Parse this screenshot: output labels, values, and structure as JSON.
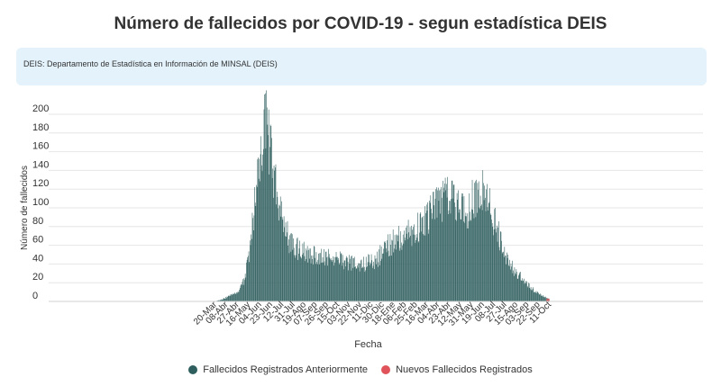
{
  "title": "Número de fallecidos por COVID-19 - segun estadística DEIS",
  "note": "DEIS: Departamento de Estadística en Información de MINSAL (DEIS)",
  "colors": {
    "previous": "#2f5e5e",
    "new": "#e0535a"
  },
  "chart_data": {
    "type": "bar",
    "xlabel": "Fecha",
    "ylabel": "Número de fallecidos",
    "ylim": [
      0,
      200
    ],
    "yticks": [
      0,
      20,
      40,
      60,
      80,
      100,
      120,
      140,
      160,
      180,
      200
    ],
    "grid": true,
    "legend_position": "bottom",
    "x_start": "2020-03-20",
    "x_end": "2021-10-11",
    "x_ticks": [
      "20-Mar",
      "08-Abr",
      "27-Abr",
      "16-May",
      "04-Jun",
      "23-Jun",
      "12-Jul",
      "31-Jul",
      "19-Ago",
      "07-Sep",
      "26-Sep",
      "15-Oct",
      "03-Nov",
      "22-Nov",
      "11-Dic",
      "30-Dic",
      "18-Ene",
      "06-Feb",
      "25-Feb",
      "16-Mar",
      "04-Abr",
      "23-Abr",
      "12-May",
      "31-May",
      "19-Jun",
      "08-Jul",
      "27-Jul",
      "15-Ago",
      "03-Sep",
      "22-Sep",
      "11-Oct"
    ],
    "series": [
      {
        "name": "Fallecidos Registrados Anteriormente",
        "color": "#2f5e5e"
      },
      {
        "name": "Nuevos Fallecidos Registrados",
        "color": "#e0535a"
      }
    ],
    "profile_points": [
      [
        "2020-03-20",
        0
      ],
      [
        "2020-04-01",
        2
      ],
      [
        "2020-04-15",
        6
      ],
      [
        "2020-04-30",
        10
      ],
      [
        "2020-05-10",
        25
      ],
      [
        "2020-05-20",
        60
      ],
      [
        "2020-05-28",
        110
      ],
      [
        "2020-06-05",
        150
      ],
      [
        "2020-06-12",
        180
      ],
      [
        "2020-06-16",
        190
      ],
      [
        "2020-06-20",
        175
      ],
      [
        "2020-06-27",
        140
      ],
      [
        "2020-07-05",
        115
      ],
      [
        "2020-07-15",
        85
      ],
      [
        "2020-07-25",
        65
      ],
      [
        "2020-08-10",
        55
      ],
      [
        "2020-09-01",
        50
      ],
      [
        "2020-10-01",
        47
      ],
      [
        "2020-11-01",
        42
      ],
      [
        "2020-12-01",
        40
      ],
      [
        "2020-12-20",
        45
      ],
      [
        "2021-01-10",
        60
      ],
      [
        "2021-02-01",
        70
      ],
      [
        "2021-02-20",
        75
      ],
      [
        "2021-03-10",
        85
      ],
      [
        "2021-03-25",
        95
      ],
      [
        "2021-04-10",
        108
      ],
      [
        "2021-04-25",
        115
      ],
      [
        "2021-05-10",
        100
      ],
      [
        "2021-05-25",
        92
      ],
      [
        "2021-06-05",
        112
      ],
      [
        "2021-06-15",
        118
      ],
      [
        "2021-06-25",
        112
      ],
      [
        "2021-07-05",
        95
      ],
      [
        "2021-07-15",
        75
      ],
      [
        "2021-07-25",
        55
      ],
      [
        "2021-08-05",
        40
      ],
      [
        "2021-08-20",
        28
      ],
      [
        "2021-09-05",
        18
      ],
      [
        "2021-09-20",
        10
      ],
      [
        "2021-10-01",
        6
      ],
      [
        "2021-10-11",
        2
      ]
    ]
  }
}
